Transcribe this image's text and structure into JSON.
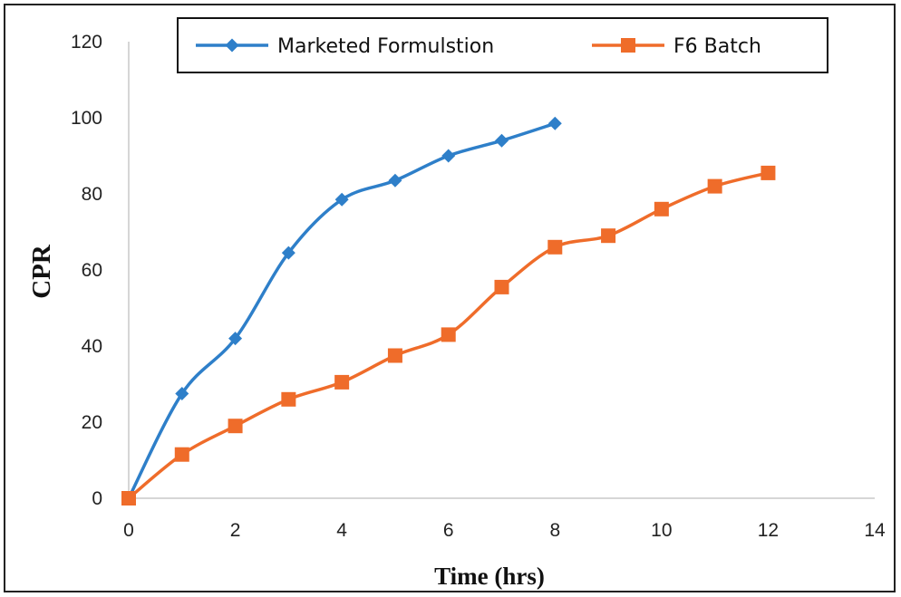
{
  "chart_data": {
    "type": "line",
    "xlabel": "Time (hrs)",
    "ylabel": "CPR",
    "xlim": [
      0,
      14
    ],
    "ylim": [
      0,
      120
    ],
    "xticks": [
      "0",
      "2",
      "4",
      "6",
      "8",
      "10",
      "12",
      "14"
    ],
    "yticks": [
      "0",
      "20",
      "40",
      "60",
      "80",
      "100",
      "120"
    ],
    "grid": false,
    "legend": "top",
    "series": [
      {
        "name": "Marketed Formulstion",
        "color": "#2e7fc9",
        "marker": "diamond",
        "x": [
          0,
          1,
          2,
          3,
          4,
          5,
          6,
          7,
          8
        ],
        "y": [
          0,
          27.5,
          42,
          64.5,
          78.5,
          83.5,
          90,
          94,
          98.5
        ]
      },
      {
        "name": "F6 Batch",
        "color": "#ef6c2a",
        "marker": "square",
        "x": [
          0,
          1,
          2,
          3,
          4,
          5,
          6,
          7,
          8,
          9,
          10,
          11,
          12
        ],
        "y": [
          0,
          11.5,
          19,
          26,
          30.5,
          37.5,
          43,
          55.5,
          66,
          69,
          76,
          82,
          85.5
        ]
      }
    ]
  }
}
